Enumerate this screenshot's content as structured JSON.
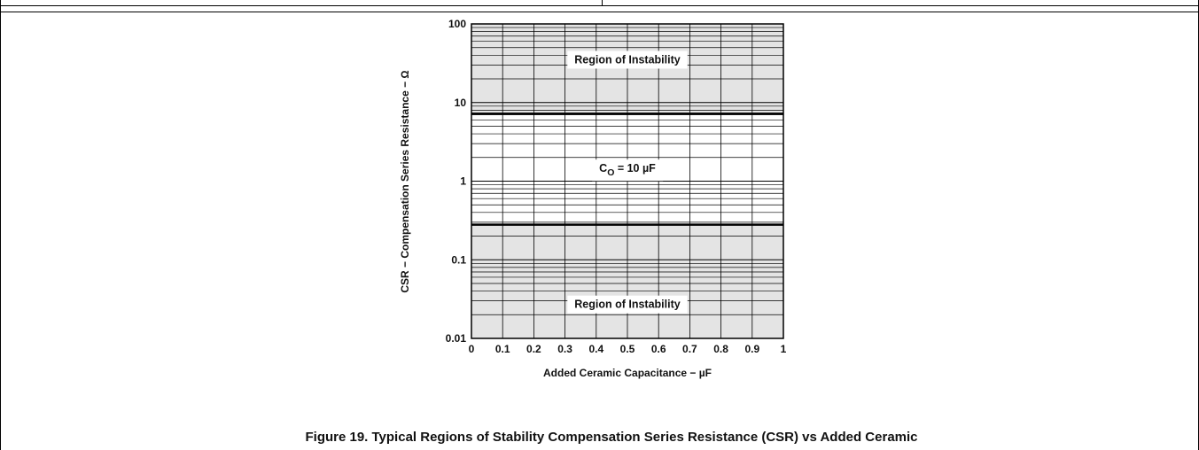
{
  "chart_data": {
    "type": "line",
    "title": "Figure 19. Typical Regions of Stability Compensation Series Resistance (CSR) vs Added Ceramic",
    "xlabel": "Added Ceramic Capacitance − µF",
    "ylabel": "CSR − Compensation Series Resistance − Ω",
    "x_ticks": [
      "0",
      "0.1",
      "0.2",
      "0.3",
      "0.4",
      "0.5",
      "0.6",
      "0.7",
      "0.8",
      "0.9",
      "1"
    ],
    "y_ticks": [
      "0.01",
      "0.1",
      "1",
      "10",
      "100"
    ],
    "xlim": [
      0,
      1
    ],
    "ylim": [
      0.01,
      100
    ],
    "y_scale": "log",
    "grid": true,
    "series": [
      {
        "x": [
          0,
          1
        ],
        "values": [
          7.2,
          7.2
        ]
      },
      {
        "x": [
          0,
          1
        ],
        "values": [
          0.28,
          0.28
        ]
      }
    ],
    "regions": [
      {
        "label": "Region of Instability",
        "y_range": [
          7.2,
          100
        ],
        "shaded": true
      },
      {
        "label": "Region of Instability",
        "y_range": [
          0.01,
          0.28
        ],
        "shaded": true
      }
    ],
    "annotations": [
      {
        "text": "Region of Instability",
        "x": 0.5,
        "y": 35
      },
      {
        "text": "C",
        "subscript": "O",
        "suffix": " = 10 µF",
        "x": 0.5,
        "y": 1.45
      },
      {
        "text": "Region of Instability",
        "x": 0.5,
        "y": 0.027
      }
    ],
    "colors": {
      "shade": "#e4e4e4",
      "grid": "#000000",
      "boundary": "#000000"
    }
  }
}
